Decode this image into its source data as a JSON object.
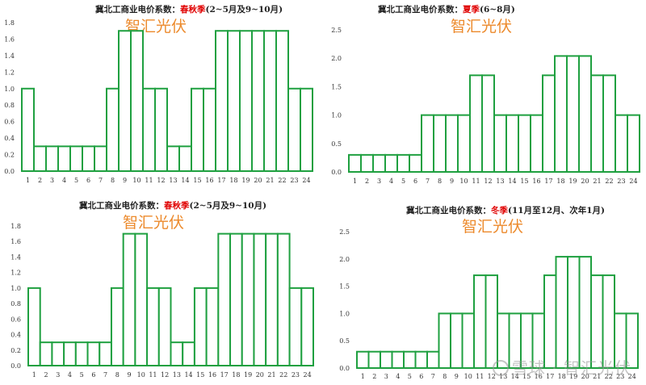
{
  "watermark": "雪球 · 智汇光伏",
  "chart_data": [
    {
      "type": "bar",
      "title_prefix": "冀北工商业电价系数：",
      "title_highlight": "春秋季",
      "title_suffix": "(2~5月及9~10月)",
      "overlay_text": "智汇光伏",
      "categories": [
        "1",
        "2",
        "3",
        "4",
        "5",
        "6",
        "7",
        "8",
        "9",
        "10",
        "11",
        "12",
        "13",
        "14",
        "15",
        "16",
        "17",
        "18",
        "19",
        "20",
        "21",
        "22",
        "23",
        "24"
      ],
      "values": [
        1.0,
        0.3,
        0.3,
        0.3,
        0.3,
        0.3,
        0.3,
        1.0,
        1.7,
        1.7,
        1.0,
        1.0,
        0.3,
        0.3,
        1.0,
        1.0,
        1.7,
        1.7,
        1.7,
        1.7,
        1.7,
        1.7,
        1.0,
        1.0
      ],
      "yticks": [
        "0.0",
        "0.2",
        "0.4",
        "0.6",
        "0.8",
        "1.0",
        "1.2",
        "1.4",
        "1.6",
        "1.8"
      ],
      "ylim": [
        0,
        1.8
      ]
    },
    {
      "type": "bar",
      "title_prefix": "冀北工商业电价系数：",
      "title_highlight": "夏季",
      "title_suffix": "(6~8月)",
      "overlay_text": "智汇光伏",
      "categories": [
        "1",
        "2",
        "3",
        "4",
        "5",
        "6",
        "7",
        "8",
        "9",
        "10",
        "11",
        "12",
        "13",
        "14",
        "15",
        "16",
        "17",
        "18",
        "19",
        "20",
        "21",
        "22",
        "23",
        "24"
      ],
      "values": [
        0.3,
        0.3,
        0.3,
        0.3,
        0.3,
        0.3,
        1.0,
        1.0,
        1.0,
        1.0,
        1.7,
        1.7,
        1.0,
        1.0,
        1.0,
        1.0,
        1.7,
        2.04,
        2.04,
        2.04,
        1.7,
        1.7,
        1.0,
        1.0
      ],
      "yticks": [
        "0.0",
        "0.5",
        "1.0",
        "1.5",
        "2.0",
        "2.5"
      ],
      "ylim": [
        0,
        2.5
      ]
    },
    {
      "type": "bar",
      "title_prefix": "冀北工商业电价系数：",
      "title_highlight": "春秋季",
      "title_suffix": "(2~5月及9~10月)",
      "overlay_text": "智汇光伏",
      "categories": [
        "1",
        "2",
        "3",
        "4",
        "5",
        "6",
        "7",
        "8",
        "9",
        "10",
        "11",
        "12",
        "13",
        "14",
        "15",
        "16",
        "17",
        "18",
        "19",
        "20",
        "21",
        "22",
        "23",
        "24"
      ],
      "values": [
        1.0,
        0.3,
        0.3,
        0.3,
        0.3,
        0.3,
        0.3,
        1.0,
        1.7,
        1.7,
        1.0,
        1.0,
        0.3,
        0.3,
        1.0,
        1.0,
        1.7,
        1.7,
        1.7,
        1.7,
        1.7,
        1.7,
        1.0,
        1.0
      ],
      "yticks": [
        "0.0",
        "0.2",
        "0.4",
        "0.6",
        "0.8",
        "1.0",
        "1.2",
        "1.4",
        "1.6",
        "1.8"
      ],
      "ylim": [
        0,
        1.8
      ]
    },
    {
      "type": "bar",
      "title_prefix": "冀北工商业电价系数：",
      "title_highlight": "冬季",
      "title_suffix": "(11月至12月、次年1月)",
      "overlay_text": "智汇光伏",
      "categories": [
        "1",
        "2",
        "3",
        "4",
        "5",
        "6",
        "7",
        "8",
        "9",
        "10",
        "11",
        "12",
        "13",
        "14",
        "15",
        "16",
        "17",
        "18",
        "19",
        "20",
        "21",
        "22",
        "23",
        "24"
      ],
      "values": [
        0.3,
        0.3,
        0.3,
        0.3,
        0.3,
        0.3,
        0.3,
        1.0,
        1.0,
        1.0,
        1.7,
        1.7,
        1.0,
        1.0,
        1.0,
        1.0,
        1.7,
        2.04,
        2.04,
        2.04,
        1.7,
        1.7,
        1.0,
        1.0
      ],
      "yticks": [
        "0.0",
        "0.5",
        "1.0",
        "1.5",
        "2.0",
        "2.5"
      ],
      "ylim": [
        0,
        2.5
      ]
    }
  ]
}
